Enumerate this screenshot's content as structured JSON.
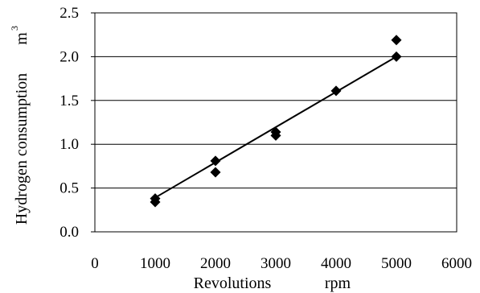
{
  "chart_data": {
    "type": "scatter",
    "title": "",
    "xlabel": "Revolutions",
    "xunit": "rpm",
    "ylabel": "Hydrogen consumption",
    "yunit": "m",
    "yunit_sup": "3",
    "xlim": [
      0,
      6000
    ],
    "ylim": [
      0,
      2.5
    ],
    "xticks": [
      0,
      1000,
      2000,
      3000,
      4000,
      5000,
      6000
    ],
    "yticks": [
      "0.0",
      "0.5",
      "1.0",
      "1.5",
      "2.0",
      "2.5"
    ],
    "grid": "horizontal",
    "legend": "none",
    "marker_color": "#000000",
    "points": [
      {
        "x": 1000,
        "y": 0.38
      },
      {
        "x": 1000,
        "y": 0.34
      },
      {
        "x": 2000,
        "y": 0.81
      },
      {
        "x": 2000,
        "y": 0.68
      },
      {
        "x": 3000,
        "y": 1.14
      },
      {
        "x": 3000,
        "y": 1.1
      },
      {
        "x": 4000,
        "y": 1.61
      },
      {
        "x": 5000,
        "y": 2.19
      },
      {
        "x": 5000,
        "y": 2.0
      }
    ],
    "trendline": {
      "x": [
        1000,
        5000
      ],
      "y": [
        0.39,
        2.0
      ]
    }
  }
}
